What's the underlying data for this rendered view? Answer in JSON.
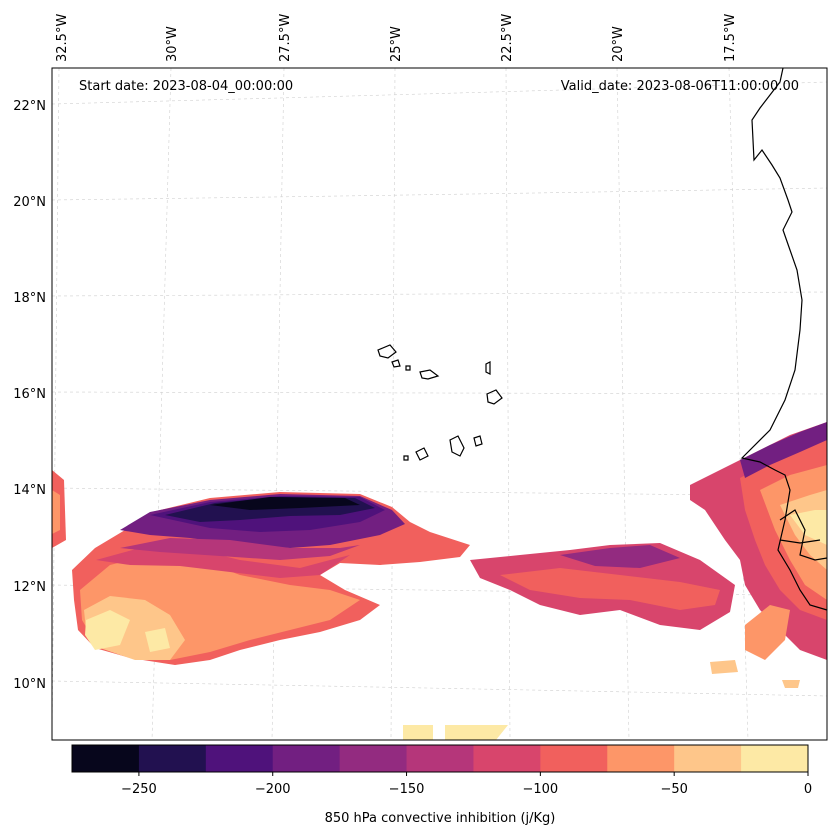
{
  "annotations": {
    "start_date": "Start date: 2023-08-04_00:00:00",
    "valid_date": "Valid_date: 2023-08-06T11:00:00.00"
  },
  "longitude_labels": [
    "32.5°W",
    "30°W",
    "27.5°W",
    "25°W",
    "22.5°W",
    "20°W",
    "17.5°W"
  ],
  "latitude_labels": [
    "22°N",
    "20°N",
    "18°N",
    "16°N",
    "14°N",
    "12°N",
    "10°N"
  ],
  "colorbar": {
    "label": "850 hPa convective inhibition (j/Kg)",
    "ticks": [
      "−250",
      "−200",
      "−150",
      "−100",
      "−50",
      "0"
    ],
    "colors": [
      "#07061c",
      "#221150",
      "#4f127b",
      "#721f81",
      "#932b80",
      "#b5367a",
      "#d8456c",
      "#f1605d",
      "#fd9668",
      "#fec68a",
      "#fde9a5"
    ]
  },
  "colors": {
    "coastline": "#000000",
    "gridline": "#cccccc"
  }
}
